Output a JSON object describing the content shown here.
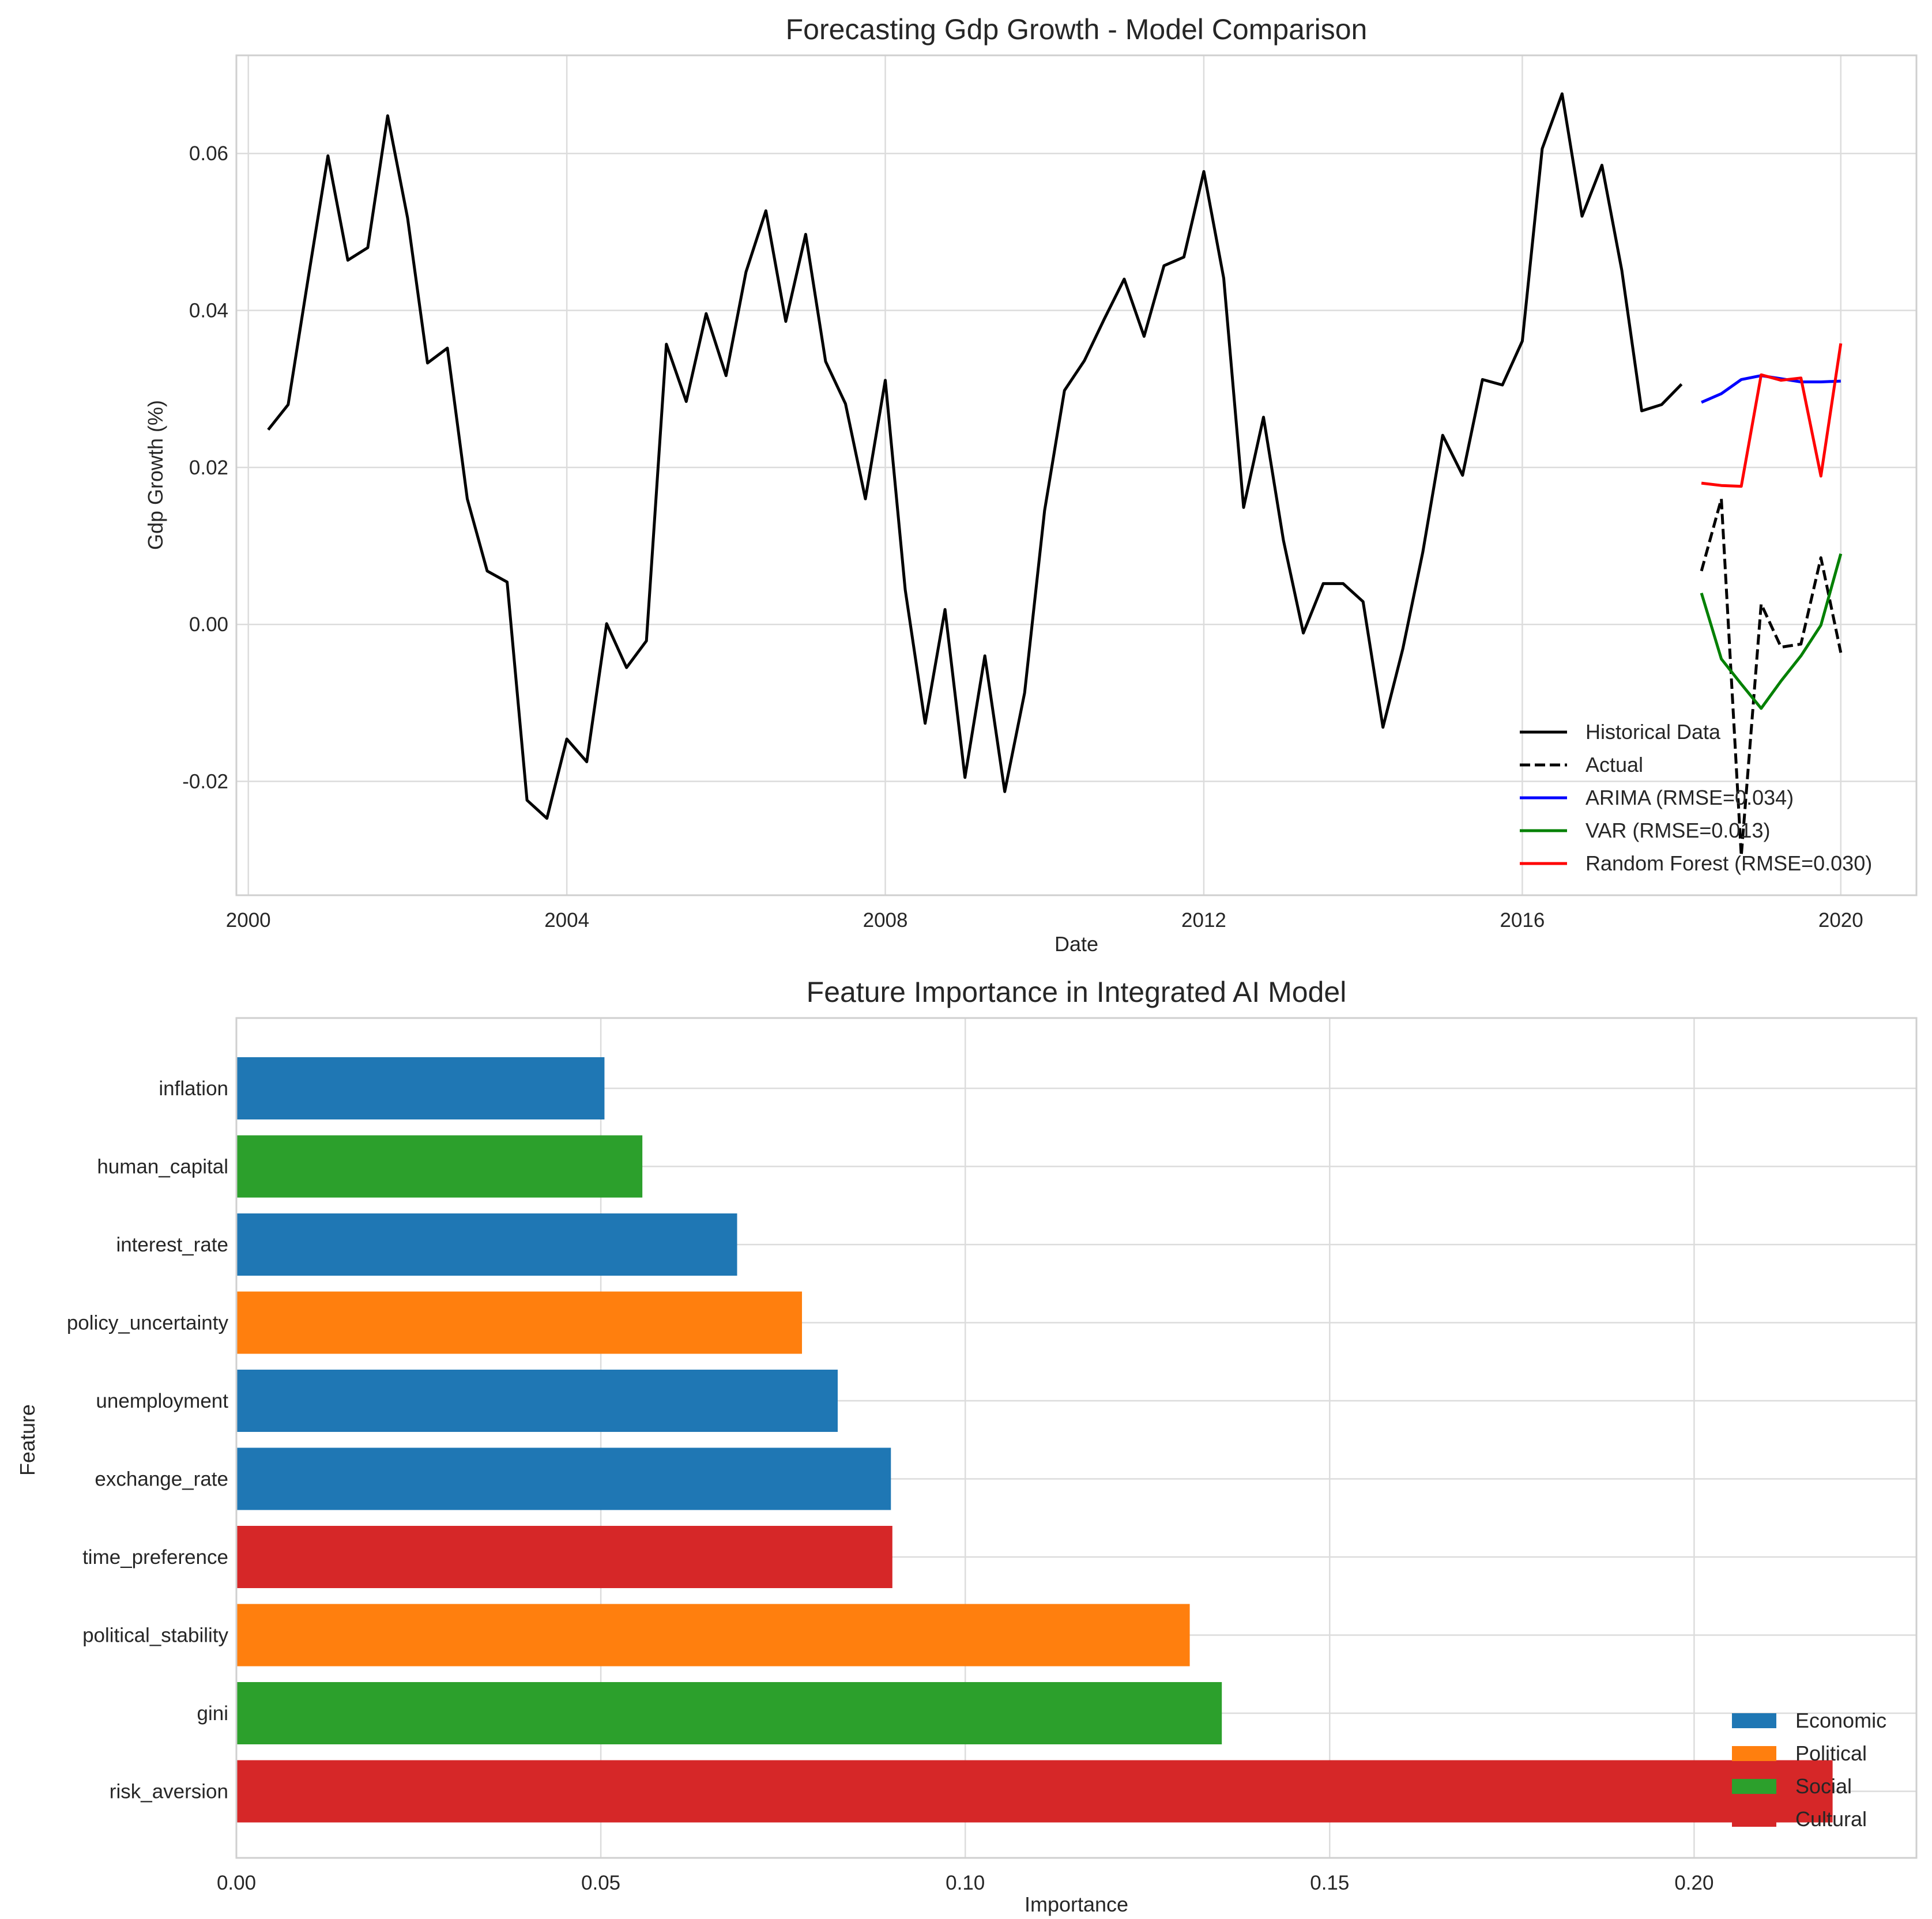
{
  "chart_data": [
    {
      "type": "line",
      "title": "Forecasting Gdp Growth - Model Comparison",
      "xlabel": "Date",
      "ylabel": "Gdp Growth (%)",
      "xlim": [
        1999.85,
        2020.95
      ],
      "ylim": [
        -0.0345,
        0.0725
      ],
      "xticks": [
        {
          "value": 2000,
          "label": "2000"
        },
        {
          "value": 2004,
          "label": "2004"
        },
        {
          "value": 2008,
          "label": "2008"
        },
        {
          "value": 2012,
          "label": "2012"
        },
        {
          "value": 2016,
          "label": "2016"
        },
        {
          "value": 2020,
          "label": "2020"
        }
      ],
      "yticks": [
        {
          "value": 0.06,
          "label": "0.06"
        },
        {
          "value": 0.04,
          "label": "0.04"
        },
        {
          "value": 0.02,
          "label": "0.02"
        },
        {
          "value": 0.0,
          "label": "0.00"
        },
        {
          "value": -0.02,
          "label": "-0.02"
        }
      ],
      "grid": true,
      "legend_position": "lower-right",
      "series": [
        {
          "name": "Historical Data",
          "color": "#000000",
          "style": "solid",
          "x_start": 2000.25,
          "x_step": 0.25,
          "values": [
            0.0248,
            0.028,
            0.044,
            0.0597,
            0.0464,
            0.048,
            0.0648,
            0.0518,
            0.0333,
            0.0352,
            0.016,
            0.0068,
            0.0054,
            -0.0224,
            -0.0247,
            -0.0146,
            -0.0175,
            0.0001,
            -0.0055,
            -0.0021,
            0.0357,
            0.0284,
            0.0396,
            0.0317,
            0.0449,
            0.0527,
            0.0386,
            0.0497,
            0.0335,
            0.0281,
            0.016,
            0.0311,
            0.0044,
            -0.0126,
            0.0019,
            -0.0195,
            -0.004,
            -0.0213,
            -0.0087,
            0.0145,
            0.0298,
            0.0336,
            0.0389,
            0.044,
            0.0367,
            0.0457,
            0.0468,
            0.0577,
            0.0441,
            0.0149,
            0.0264,
            0.0107,
            -0.0011,
            0.0052,
            0.0052,
            0.0029,
            -0.0131,
            -0.0031,
            0.0092,
            0.0241,
            0.019,
            0.0312,
            0.0305,
            0.0361,
            0.0606,
            0.0676,
            0.052,
            0.0585,
            0.0451,
            0.0272,
            0.028,
            0.0306
          ]
        },
        {
          "name": "Actual",
          "color": "#000000",
          "style": "dashed",
          "x_start": 2018.25,
          "x_step": 0.25,
          "values": [
            0.0068,
            0.016,
            -0.0295,
            0.0026,
            -0.0029,
            -0.0025,
            0.0085,
            -0.0036
          ]
        },
        {
          "name": "ARIMA (RMSE=0.034)",
          "color": "#0000ff",
          "style": "solid",
          "x_start": 2018.25,
          "x_step": 0.25,
          "values": [
            0.0283,
            0.0294,
            0.0312,
            0.0317,
            0.0313,
            0.0309,
            0.0309,
            0.031
          ]
        },
        {
          "name": "VAR (RMSE=0.013)",
          "color": "#008000",
          "style": "solid",
          "x_start": 2018.25,
          "x_step": 0.25,
          "values": [
            0.004,
            -0.0044,
            -0.0076,
            -0.0107,
            -0.0072,
            -0.004,
            -0.0001,
            0.009
          ]
        },
        {
          "name": "Random Forest (RMSE=0.030)",
          "color": "#ff0000",
          "style": "solid",
          "x_start": 2018.25,
          "x_step": 0.25,
          "values": [
            0.018,
            0.0177,
            0.0176,
            0.0318,
            0.0311,
            0.0314,
            0.0189,
            0.0358
          ]
        }
      ]
    },
    {
      "type": "bar",
      "orientation": "horizontal",
      "title": "Feature Importance in Integrated AI Model",
      "xlabel": "Importance",
      "ylabel": "Feature",
      "xlim": [
        0.0,
        0.2305
      ],
      "xticks": [
        {
          "value": 0.0,
          "label": "0.00"
        },
        {
          "value": 0.05,
          "label": "0.05"
        },
        {
          "value": 0.1,
          "label": "0.10"
        },
        {
          "value": 0.15,
          "label": "0.15"
        },
        {
          "value": 0.2,
          "label": "0.20"
        }
      ],
      "grid": true,
      "legend_position": "lower-right",
      "categories": [
        "inflation",
        "human_capital",
        "interest_rate",
        "policy_uncertainty",
        "unemployment",
        "exchange_rate",
        "time_preference",
        "political_stability",
        "gini",
        "risk_aversion"
      ],
      "values": [
        0.0505,
        0.0557,
        0.0687,
        0.0776,
        0.0825,
        0.0898,
        0.09,
        0.1308,
        0.1352,
        0.219
      ],
      "groups": [
        "Economic",
        "Social",
        "Economic",
        "Political",
        "Economic",
        "Economic",
        "Cultural",
        "Political",
        "Social",
        "Cultural"
      ],
      "legend": [
        {
          "label": "Economic",
          "color": "#1f77b4"
        },
        {
          "label": "Political",
          "color": "#ff7f0e"
        },
        {
          "label": "Social",
          "color": "#2ca02c"
        },
        {
          "label": "Cultural",
          "color": "#d62728"
        }
      ]
    }
  ]
}
